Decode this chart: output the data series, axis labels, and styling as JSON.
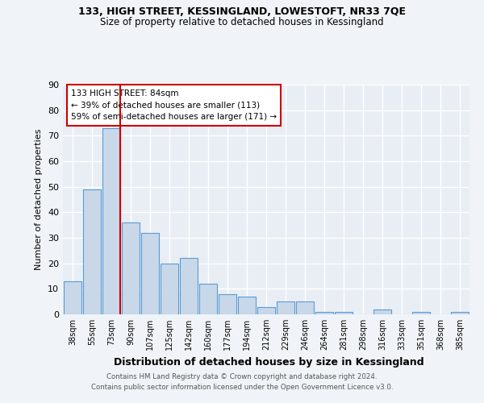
{
  "title_line1": "133, HIGH STREET, KESSINGLAND, LOWESTOFT, NR33 7QE",
  "title_line2": "Size of property relative to detached houses in Kessingland",
  "xlabel": "Distribution of detached houses by size in Kessingland",
  "ylabel": "Number of detached properties",
  "bar_labels": [
    "38sqm",
    "55sqm",
    "73sqm",
    "90sqm",
    "107sqm",
    "125sqm",
    "142sqm",
    "160sqm",
    "177sqm",
    "194sqm",
    "212sqm",
    "229sqm",
    "246sqm",
    "264sqm",
    "281sqm",
    "298sqm",
    "316sqm",
    "333sqm",
    "351sqm",
    "368sqm",
    "385sqm"
  ],
  "bar_values": [
    13,
    49,
    73,
    36,
    32,
    20,
    22,
    12,
    8,
    7,
    3,
    5,
    5,
    1,
    1,
    0,
    2,
    0,
    1,
    0,
    1
  ],
  "bar_color": "#c8d8e8",
  "bar_edge_color": "#5b9bd5",
  "axes_bg_color": "#e8eef4",
  "fig_bg_color": "#f0f4f8",
  "grid_color": "#ffffff",
  "annotation_box_text_line1": "133 HIGH STREET: 84sqm",
  "annotation_box_text_line2": "← 39% of detached houses are smaller (113)",
  "annotation_box_text_line3": "59% of semi-detached houses are larger (171) →",
  "annotation_box_edge_color": "#cc0000",
  "red_line_color": "#cc0000",
  "ylim": [
    0,
    90
  ],
  "yticks": [
    0,
    10,
    20,
    30,
    40,
    50,
    60,
    70,
    80,
    90
  ],
  "footer_line1": "Contains HM Land Registry data © Crown copyright and database right 2024.",
  "footer_line2": "Contains public sector information licensed under the Open Government Licence v3.0."
}
